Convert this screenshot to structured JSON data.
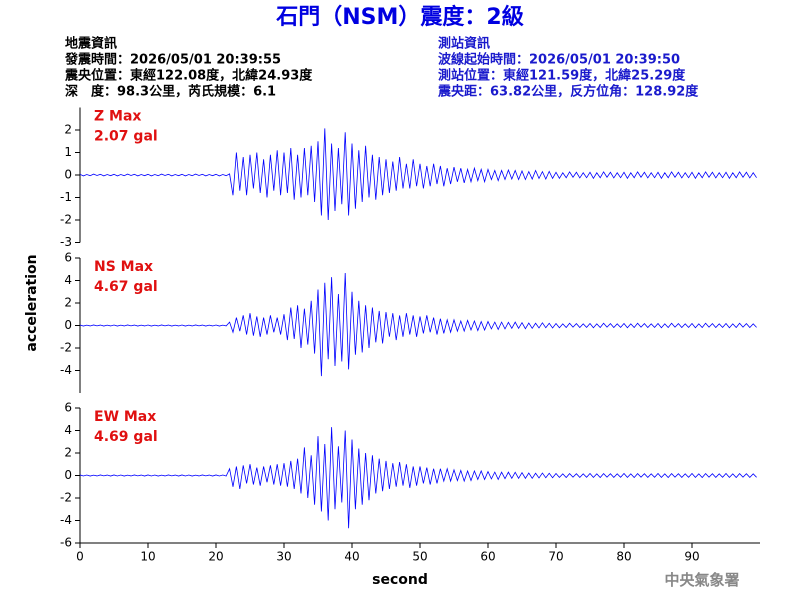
{
  "header": {
    "title": "石門（NSM）震度：2級",
    "left_info": [
      "地震資訊",
      "發震時間：2026/05/01 20:39:55",
      "震央位置：東經122.08度，北緯24.93度",
      "深　度：98.3公里，芮氏規模：6.1"
    ],
    "right_info": [
      "測站資訊",
      "波線起始時間：2026/05/01 20:39:50",
      "測站位置：東經121.59度，北緯25.29度",
      "震央距：63.82公里，反方位角：128.92度"
    ]
  },
  "footer": "中央氣象署",
  "chart_data": [
    {
      "type": "line",
      "annotation": [
        "Z Max",
        "2.07 gal"
      ],
      "color": "#0000ff",
      "xlim": [
        0,
        100
      ],
      "ylim": [
        -3,
        3
      ],
      "yticks": [
        -3,
        -2,
        -1,
        0,
        1,
        2
      ],
      "x": [
        0,
        0.5,
        1,
        1.5,
        2,
        2.5,
        3,
        3.5,
        4,
        4.5,
        5,
        5.5,
        6,
        6.5,
        7,
        7.5,
        8,
        8.5,
        9,
        9.5,
        10,
        10.5,
        11,
        11.5,
        12,
        12.5,
        13,
        13.5,
        14,
        14.5,
        15,
        15.5,
        16,
        16.5,
        17,
        17.5,
        18,
        18.5,
        19,
        19.5,
        20,
        20.5,
        21,
        21.5,
        22,
        22.5,
        23,
        23.5,
        24,
        24.5,
        25,
        25.5,
        26,
        26.5,
        27,
        27.5,
        28,
        28.5,
        29,
        29.5,
        30,
        30.5,
        31,
        31.5,
        32,
        32.5,
        33,
        33.5,
        34,
        34.5,
        35,
        35.5,
        36,
        36.5,
        37,
        37.5,
        38,
        38.5,
        39,
        39.5,
        40,
        40.5,
        41,
        41.5,
        42,
        42.5,
        43,
        43.5,
        44,
        44.5,
        45,
        45.5,
        46,
        46.5,
        47,
        47.5,
        48,
        48.5,
        49,
        49.5,
        50,
        50.5,
        51,
        51.5,
        52,
        52.5,
        53,
        53.5,
        54,
        54.5,
        55,
        55.5,
        56,
        56.5,
        57,
        57.5,
        58,
        58.5,
        59,
        59.5,
        60,
        60.5,
        61,
        61.5,
        62,
        62.5,
        63,
        63.5,
        64,
        64.5,
        65,
        65.5,
        66,
        66.5,
        67,
        67.5,
        68,
        68.5,
        69,
        69.5,
        70,
        70.5,
        71,
        71.5,
        72,
        72.5,
        73,
        73.5,
        74,
        74.5,
        75,
        75.5,
        76,
        76.5,
        77,
        77.5,
        78,
        78.5,
        79,
        79.5,
        80,
        80.5,
        81,
        81.5,
        82,
        82.5,
        83,
        83.5,
        84,
        84.5,
        85,
        85.5,
        86,
        86.5,
        87,
        87.5,
        88,
        88.5,
        89,
        89.5,
        90,
        90.5,
        91,
        91.5,
        92,
        92.5,
        93,
        93.5,
        94,
        94.5,
        95,
        95.5,
        96,
        96.5,
        97,
        97.5,
        98,
        98.5,
        99,
        99.5
      ],
      "values": [
        0.03,
        -0.04,
        0.02,
        -0.03,
        0.04,
        -0.02,
        0.03,
        -0.04,
        0.02,
        -0.03,
        0.03,
        -0.04,
        0.02,
        -0.03,
        0.04,
        -0.02,
        0.03,
        -0.04,
        0.02,
        -0.03,
        0.03,
        -0.04,
        0.02,
        -0.03,
        0.04,
        -0.02,
        0.03,
        -0.04,
        0.02,
        -0.03,
        0.03,
        -0.04,
        0.02,
        -0.03,
        0.04,
        -0.02,
        0.03,
        -0.04,
        0.02,
        -0.03,
        0.03,
        -0.04,
        0.02,
        -0.03,
        0.05,
        -0.9,
        1.0,
        -0.7,
        0.8,
        -0.9,
        0.9,
        -0.6,
        1.0,
        -0.8,
        0.7,
        -1.0,
        0.9,
        -0.7,
        1.1,
        -0.9,
        1.0,
        -0.8,
        1.2,
        -1.1,
        0.9,
        -1.0,
        1.2,
        -0.9,
        1.3,
        -1.2,
        1.5,
        -1.8,
        2.07,
        -2.0,
        1.4,
        -1.6,
        1.2,
        -1.3,
        1.9,
        -1.8,
        1.4,
        -1.5,
        1.1,
        -1.2,
        1.3,
        -1.0,
        0.9,
        -1.1,
        0.8,
        -0.9,
        0.7,
        -0.8,
        0.6,
        -0.7,
        0.8,
        -0.6,
        0.5,
        -0.6,
        0.7,
        -0.5,
        0.5,
        -0.6,
        0.4,
        -0.5,
        0.5,
        -0.4,
        0.4,
        -0.5,
        0.3,
        -0.4,
        0.35,
        -0.3,
        0.3,
        -0.35,
        0.25,
        -0.3,
        0.3,
        -0.25,
        0.25,
        -0.3,
        0.25,
        -0.2,
        0.2,
        -0.25,
        0.2,
        -0.2,
        0.22,
        -0.18,
        0.2,
        -0.2,
        0.18,
        -0.2,
        0.15,
        -0.18,
        0.2,
        -0.15,
        0.15,
        -0.18,
        0.16,
        -0.15,
        0.12,
        -0.15,
        0.1,
        -0.12,
        0.14,
        -0.1,
        0.12,
        -0.13,
        0.1,
        -0.12,
        0.12,
        -0.15,
        0.1,
        -0.12,
        0.14,
        -0.1,
        0.12,
        -0.13,
        0.1,
        -0.12,
        0.12,
        -0.15,
        0.1,
        -0.12,
        0.14,
        -0.1,
        0.12,
        -0.13,
        0.1,
        -0.12,
        0.12,
        -0.15,
        0.1,
        -0.12,
        0.14,
        -0.1,
        0.12,
        -0.13,
        0.1,
        -0.12,
        0.12,
        -0.15,
        0.1,
        -0.12,
        0.14,
        -0.1,
        0.12,
        -0.13,
        0.1,
        -0.12,
        0.12,
        -0.15,
        0.1,
        -0.12,
        0.14,
        -0.1,
        0.12,
        -0.13,
        0.1,
        -0.12
      ]
    },
    {
      "type": "line",
      "annotation": [
        "NS Max",
        "4.67 gal"
      ],
      "ylabel": "acceleration",
      "color": "#0000ff",
      "xlim": [
        0,
        100
      ],
      "ylim": [
        -6,
        6
      ],
      "yticks": [
        -4,
        -2,
        0,
        2,
        4,
        6
      ],
      "x": [
        0,
        0.5,
        1,
        1.5,
        2,
        2.5,
        3,
        3.5,
        4,
        4.5,
        5,
        5.5,
        6,
        6.5,
        7,
        7.5,
        8,
        8.5,
        9,
        9.5,
        10,
        10.5,
        11,
        11.5,
        12,
        12.5,
        13,
        13.5,
        14,
        14.5,
        15,
        15.5,
        16,
        16.5,
        17,
        17.5,
        18,
        18.5,
        19,
        19.5,
        20,
        20.5,
        21,
        21.5,
        22,
        22.5,
        23,
        23.5,
        24,
        24.5,
        25,
        25.5,
        26,
        26.5,
        27,
        27.5,
        28,
        28.5,
        29,
        29.5,
        30,
        30.5,
        31,
        31.5,
        32,
        32.5,
        33,
        33.5,
        34,
        34.5,
        35,
        35.5,
        36,
        36.5,
        37,
        37.5,
        38,
        38.5,
        39,
        39.5,
        40,
        40.5,
        41,
        41.5,
        42,
        42.5,
        43,
        43.5,
        44,
        44.5,
        45,
        45.5,
        46,
        46.5,
        47,
        47.5,
        48,
        48.5,
        49,
        49.5,
        50,
        50.5,
        51,
        51.5,
        52,
        52.5,
        53,
        53.5,
        54,
        54.5,
        55,
        55.5,
        56,
        56.5,
        57,
        57.5,
        58,
        58.5,
        59,
        59.5,
        60,
        60.5,
        61,
        61.5,
        62,
        62.5,
        63,
        63.5,
        64,
        64.5,
        65,
        65.5,
        66,
        66.5,
        67,
        67.5,
        68,
        68.5,
        69,
        69.5,
        70,
        70.5,
        71,
        71.5,
        72,
        72.5,
        73,
        73.5,
        74,
        74.5,
        75,
        75.5,
        76,
        76.5,
        77,
        77.5,
        78,
        78.5,
        79,
        79.5,
        80,
        80.5,
        81,
        81.5,
        82,
        82.5,
        83,
        83.5,
        84,
        84.5,
        85,
        85.5,
        86,
        86.5,
        87,
        87.5,
        88,
        88.5,
        89,
        89.5,
        90,
        90.5,
        91,
        91.5,
        92,
        92.5,
        93,
        93.5,
        94,
        94.5,
        95,
        95.5,
        96,
        96.5,
        97,
        97.5,
        98,
        98.5,
        99,
        99.5
      ],
      "values": [
        0.04,
        -0.05,
        0.03,
        -0.04,
        0.05,
        -0.03,
        0.04,
        -0.05,
        0.03,
        -0.04,
        0.04,
        -0.05,
        0.03,
        -0.04,
        0.05,
        -0.03,
        0.04,
        -0.05,
        0.03,
        -0.04,
        0.04,
        -0.05,
        0.03,
        -0.04,
        0.05,
        -0.03,
        0.04,
        -0.05,
        0.03,
        -0.04,
        0.04,
        -0.05,
        0.03,
        -0.04,
        0.05,
        -0.03,
        0.04,
        -0.05,
        0.03,
        -0.04,
        0.04,
        -0.05,
        0.03,
        -0.04,
        0.3,
        -0.6,
        0.7,
        -0.5,
        0.9,
        -0.8,
        1.1,
        -0.9,
        0.8,
        -1.0,
        0.7,
        -0.8,
        0.9,
        -0.6,
        0.7,
        -0.8,
        1.0,
        -1.3,
        1.6,
        -1.2,
        1.8,
        -2.0,
        1.5,
        -1.7,
        2.2,
        -2.5,
        3.2,
        -4.5,
        3.8,
        -3.0,
        4.3,
        -3.6,
        2.8,
        -3.2,
        4.67,
        -3.9,
        3.0,
        -2.6,
        2.2,
        -2.4,
        1.8,
        -2.0,
        1.6,
        -1.5,
        1.3,
        -1.6,
        1.2,
        -1.0,
        1.1,
        -1.3,
        0.9,
        -1.0,
        1.1,
        -0.8,
        0.9,
        -1.0,
        0.8,
        -0.7,
        0.9,
        -0.6,
        0.7,
        -0.8,
        0.6,
        -0.7,
        0.5,
        -0.6,
        0.5,
        -0.5,
        0.4,
        -0.5,
        0.45,
        -0.4,
        0.4,
        -0.45,
        0.35,
        -0.4,
        0.35,
        -0.3,
        0.3,
        -0.35,
        0.3,
        -0.3,
        0.28,
        -0.25,
        0.3,
        -0.25,
        0.25,
        -0.28,
        0.22,
        -0.25,
        0.2,
        -0.22,
        0.24,
        -0.2,
        0.2,
        -0.22,
        0.18,
        -0.2,
        0.15,
        -0.18,
        0.2,
        -0.15,
        0.17,
        -0.18,
        0.15,
        -0.17,
        0.18,
        -0.2,
        0.15,
        -0.18,
        0.2,
        -0.15,
        0.17,
        -0.18,
        0.15,
        -0.17,
        0.18,
        -0.2,
        0.15,
        -0.18,
        0.2,
        -0.15,
        0.17,
        -0.18,
        0.15,
        -0.17,
        0.18,
        -0.2,
        0.15,
        -0.18,
        0.2,
        -0.15,
        0.17,
        -0.18,
        0.15,
        -0.17,
        0.18,
        -0.2,
        0.15,
        -0.18,
        0.2,
        -0.15,
        0.17,
        -0.18,
        0.15,
        -0.17,
        0.18,
        -0.2,
        0.15,
        -0.18,
        0.2,
        -0.15,
        0.17,
        -0.18,
        0.15,
        -0.17
      ]
    },
    {
      "type": "line",
      "annotation": [
        "EW Max",
        "4.69 gal"
      ],
      "xlabel": "second",
      "color": "#0000ff",
      "xlim": [
        0,
        100
      ],
      "xticks": [
        0,
        10,
        20,
        30,
        40,
        50,
        60,
        70,
        80,
        90
      ],
      "ylim": [
        -6,
        6
      ],
      "yticks": [
        -6,
        -4,
        -2,
        0,
        2,
        4,
        6
      ],
      "x": [
        0,
        0.5,
        1,
        1.5,
        2,
        2.5,
        3,
        3.5,
        4,
        4.5,
        5,
        5.5,
        6,
        6.5,
        7,
        7.5,
        8,
        8.5,
        9,
        9.5,
        10,
        10.5,
        11,
        11.5,
        12,
        12.5,
        13,
        13.5,
        14,
        14.5,
        15,
        15.5,
        16,
        16.5,
        17,
        17.5,
        18,
        18.5,
        19,
        19.5,
        20,
        20.5,
        21,
        21.5,
        22,
        22.5,
        23,
        23.5,
        24,
        24.5,
        25,
        25.5,
        26,
        26.5,
        27,
        27.5,
        28,
        28.5,
        29,
        29.5,
        30,
        30.5,
        31,
        31.5,
        32,
        32.5,
        33,
        33.5,
        34,
        34.5,
        35,
        35.5,
        36,
        36.5,
        37,
        37.5,
        38,
        38.5,
        39,
        39.5,
        40,
        40.5,
        41,
        41.5,
        42,
        42.5,
        43,
        43.5,
        44,
        44.5,
        45,
        45.5,
        46,
        46.5,
        47,
        47.5,
        48,
        48.5,
        49,
        49.5,
        50,
        50.5,
        51,
        51.5,
        52,
        52.5,
        53,
        53.5,
        54,
        54.5,
        55,
        55.5,
        56,
        56.5,
        57,
        57.5,
        58,
        58.5,
        59,
        59.5,
        60,
        60.5,
        61,
        61.5,
        62,
        62.5,
        63,
        63.5,
        64,
        64.5,
        65,
        65.5,
        66,
        66.5,
        67,
        67.5,
        68,
        68.5,
        69,
        69.5,
        70,
        70.5,
        71,
        71.5,
        72,
        72.5,
        73,
        73.5,
        74,
        74.5,
        75,
        75.5,
        76,
        76.5,
        77,
        77.5,
        78,
        78.5,
        79,
        79.5,
        80,
        80.5,
        81,
        81.5,
        82,
        82.5,
        83,
        83.5,
        84,
        84.5,
        85,
        85.5,
        86,
        86.5,
        87,
        87.5,
        88,
        88.5,
        89,
        89.5,
        90,
        90.5,
        91,
        91.5,
        92,
        92.5,
        93,
        93.5,
        94,
        94.5,
        95,
        95.5,
        96,
        96.5,
        97,
        97.5,
        98,
        98.5,
        99,
        99.5
      ],
      "values": [
        0.05,
        -0.04,
        0.04,
        -0.05,
        0.03,
        -0.04,
        0.05,
        -0.03,
        0.04,
        -0.05,
        0.05,
        -0.04,
        0.04,
        -0.05,
        0.03,
        -0.04,
        0.05,
        -0.03,
        0.04,
        -0.05,
        0.05,
        -0.04,
        0.04,
        -0.05,
        0.03,
        -0.04,
        0.05,
        -0.03,
        0.04,
        -0.05,
        0.05,
        -0.04,
        0.04,
        -0.05,
        0.03,
        -0.04,
        0.05,
        -0.03,
        0.04,
        -0.05,
        0.05,
        -0.04,
        0.04,
        -0.05,
        0.6,
        -1.0,
        0.8,
        -1.2,
        0.9,
        -0.7,
        1.0,
        -0.8,
        0.7,
        -0.9,
        0.8,
        -0.6,
        0.9,
        -0.8,
        1.0,
        -0.9,
        1.1,
        -1.0,
        1.3,
        -1.2,
        1.5,
        -1.6,
        2.5,
        -2.0,
        1.8,
        -2.6,
        3.5,
        -3.2,
        2.8,
        -4.0,
        4.3,
        -3.0,
        2.6,
        -2.4,
        4.0,
        -4.69,
        3.2,
        -3.0,
        2.4,
        -2.6,
        2.0,
        -2.2,
        1.8,
        -1.6,
        1.5,
        -1.4,
        1.3,
        -1.2,
        1.1,
        -1.0,
        1.2,
        -0.9,
        1.0,
        -1.1,
        0.8,
        -0.9,
        0.8,
        -0.7,
        0.7,
        -0.8,
        0.6,
        -0.7,
        0.6,
        -0.5,
        0.6,
        -0.5,
        0.5,
        -0.45,
        0.45,
        -0.5,
        0.4,
        -0.45,
        0.4,
        -0.35,
        0.4,
        -0.35,
        0.35,
        -0.3,
        0.3,
        -0.35,
        0.3,
        -0.28,
        0.3,
        -0.25,
        0.28,
        -0.25,
        0.25,
        -0.25,
        0.22,
        -0.25,
        0.2,
        -0.22,
        0.22,
        -0.2,
        0.2,
        -0.2,
        0.18,
        -0.17,
        0.15,
        -0.18,
        0.17,
        -0.15,
        0.16,
        -0.17,
        0.15,
        -0.16,
        0.18,
        -0.17,
        0.15,
        -0.18,
        0.17,
        -0.15,
        0.16,
        -0.17,
        0.15,
        -0.16,
        0.18,
        -0.17,
        0.15,
        -0.18,
        0.17,
        -0.15,
        0.16,
        -0.17,
        0.15,
        -0.16,
        0.18,
        -0.17,
        0.15,
        -0.18,
        0.17,
        -0.15,
        0.16,
        -0.17,
        0.15,
        -0.16,
        0.18,
        -0.17,
        0.15,
        -0.18,
        0.17,
        -0.15,
        0.16,
        -0.17,
        0.15,
        -0.16,
        0.18,
        -0.17,
        0.15,
        -0.18,
        0.17,
        -0.15,
        0.16,
        -0.17,
        0.15,
        -0.16
      ]
    }
  ]
}
